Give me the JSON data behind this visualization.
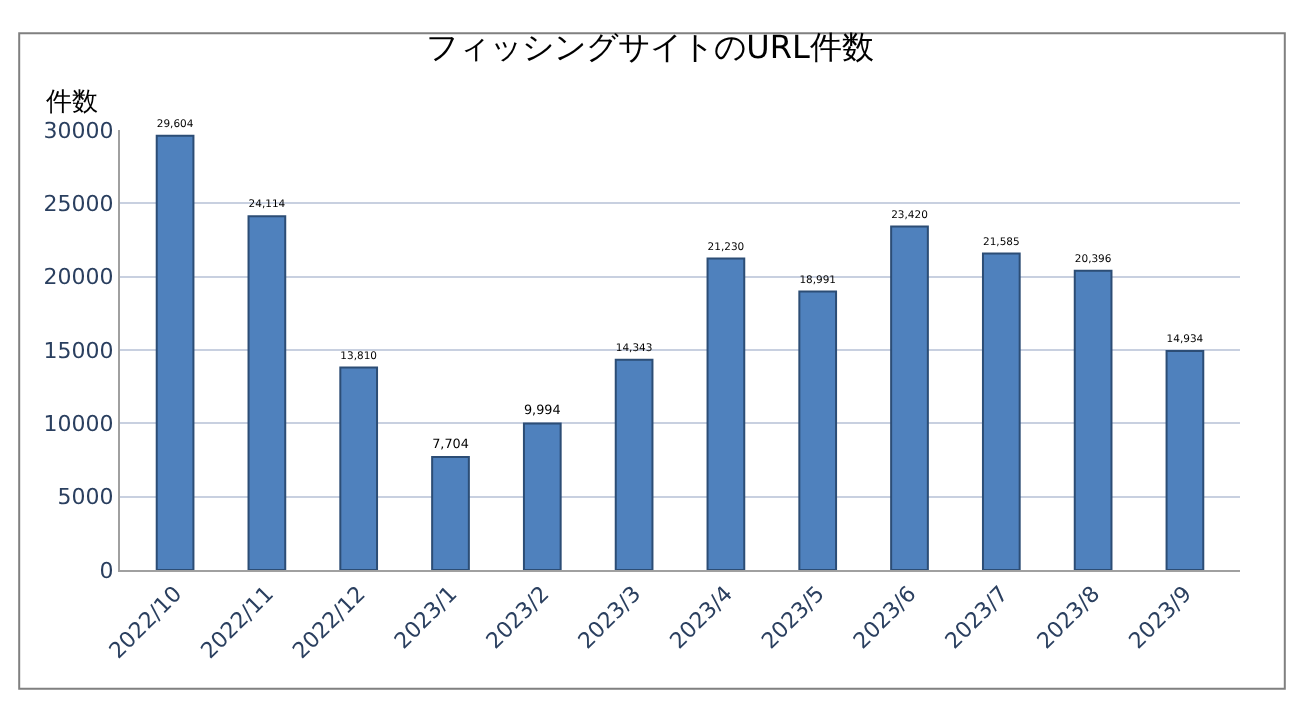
{
  "chart_data": {
    "type": "bar",
    "title": "フィッシングサイトのURL件数",
    "ylabel": "件数",
    "categories": [
      "2022/10",
      "2022/11",
      "2022/12",
      "2023/1",
      "2023/2",
      "2023/3",
      "2023/4",
      "2023/5",
      "2023/6",
      "2023/7",
      "2023/8",
      "2023/9"
    ],
    "values": [
      29604,
      24114,
      13810,
      7704,
      9994,
      14343,
      21230,
      18991,
      23420,
      21585,
      20396,
      14934
    ],
    "value_labels": [
      "29,604",
      "24,114",
      "13,810",
      "7,704",
      "9,994",
      "14,343",
      "21,230",
      "18,991",
      "23,420",
      "21,585",
      "20,396",
      "14,934"
    ],
    "color": "#4f81bd",
    "ylim": [
      0,
      30000
    ],
    "yticks": [
      0,
      5000,
      10000,
      15000,
      20000,
      25000,
      30000
    ],
    "grid": "y",
    "legend": false
  }
}
